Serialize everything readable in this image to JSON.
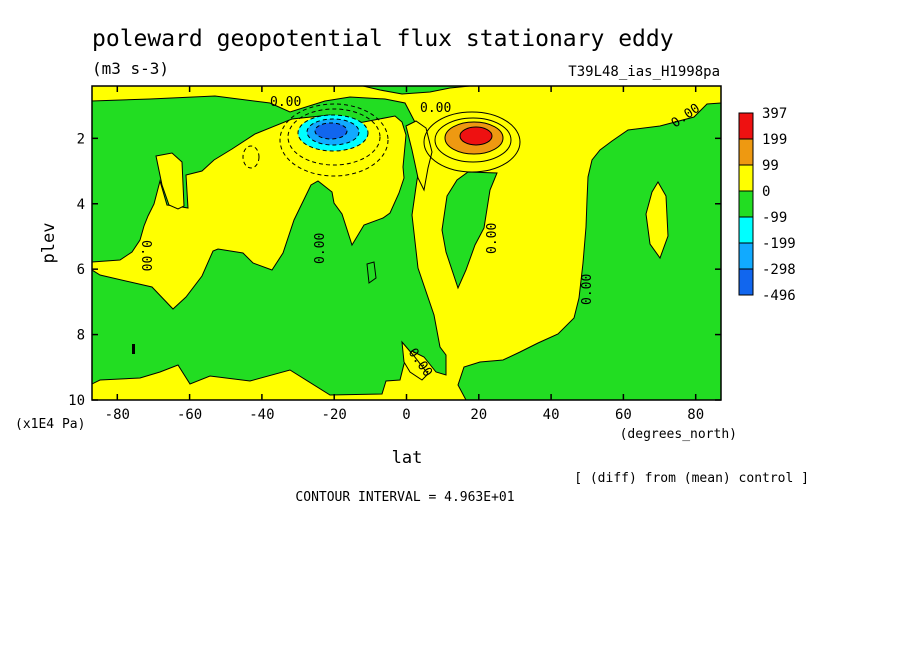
{
  "chart_data": {
    "type": "heatmap",
    "title": "poleward geopotential flux stationary eddy",
    "units": "(m3 s-3)",
    "run_label": "T39L48_ias_H1998pa",
    "xlabel": "lat",
    "x_units": "(degrees_north)",
    "ylabel": "plev",
    "y_units": "(x1E4 Pa)",
    "xlim": [
      -87,
      87
    ],
    "ylim": [
      10,
      0.4
    ],
    "x_ticks": [
      -80,
      -60,
      -40,
      -20,
      0,
      20,
      40,
      60,
      80
    ],
    "y_ticks": [
      2,
      4,
      6,
      8,
      10
    ],
    "colorbar": {
      "levels": [
        "397",
        "199",
        "99",
        "0",
        "-99",
        "-199",
        "-298",
        "-496"
      ],
      "colors": [
        "#ee1111",
        "#ee9911",
        "#ffff00",
        "#22dd22",
        "#00ffff",
        "#11aaff",
        "#1166ee"
      ]
    },
    "contour_labels": [
      "0.00",
      "0.00",
      "0.00",
      "0.00",
      "0.00",
      "0.00",
      "0.00",
      "0.00"
    ],
    "footer_note": "[ (diff) from (mean) control ]",
    "contour_interval": "CONTOUR INTERVAL = 4.963E+01",
    "extrema": {
      "max": {
        "lat": 20,
        "plev": 1.6,
        "value": 397
      },
      "min": {
        "lat": -20,
        "plev": 1.6,
        "value": -496
      }
    }
  }
}
